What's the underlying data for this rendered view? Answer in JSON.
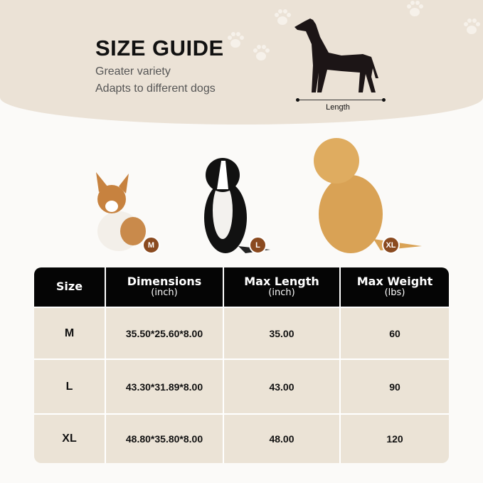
{
  "header": {
    "title": "SIZE GUIDE",
    "subtitle_1": "Greater variety",
    "subtitle_2": "Adapts to different dogs",
    "length_label": "Length"
  },
  "dogs": [
    {
      "size": "M",
      "badge_color": "#8a4a1f"
    },
    {
      "size": "L",
      "badge_color": "#8a4a1f"
    },
    {
      "size": "XL",
      "badge_color": "#8a4a1f"
    }
  ],
  "table": {
    "headers": [
      {
        "title": "Size",
        "unit": ""
      },
      {
        "title": "Dimensions",
        "unit": "(inch)"
      },
      {
        "title": "Max Length",
        "unit": "(inch)"
      },
      {
        "title": "Max Weight",
        "unit": "(lbs)"
      }
    ],
    "rows": [
      [
        "M",
        "35.50*25.60*8.00",
        "35.00",
        "60"
      ],
      [
        "L",
        "43.30*31.89*8.00",
        "43.00",
        "90"
      ],
      [
        "XL",
        "48.80*35.80*8.00",
        "48.00",
        "120"
      ]
    ]
  }
}
